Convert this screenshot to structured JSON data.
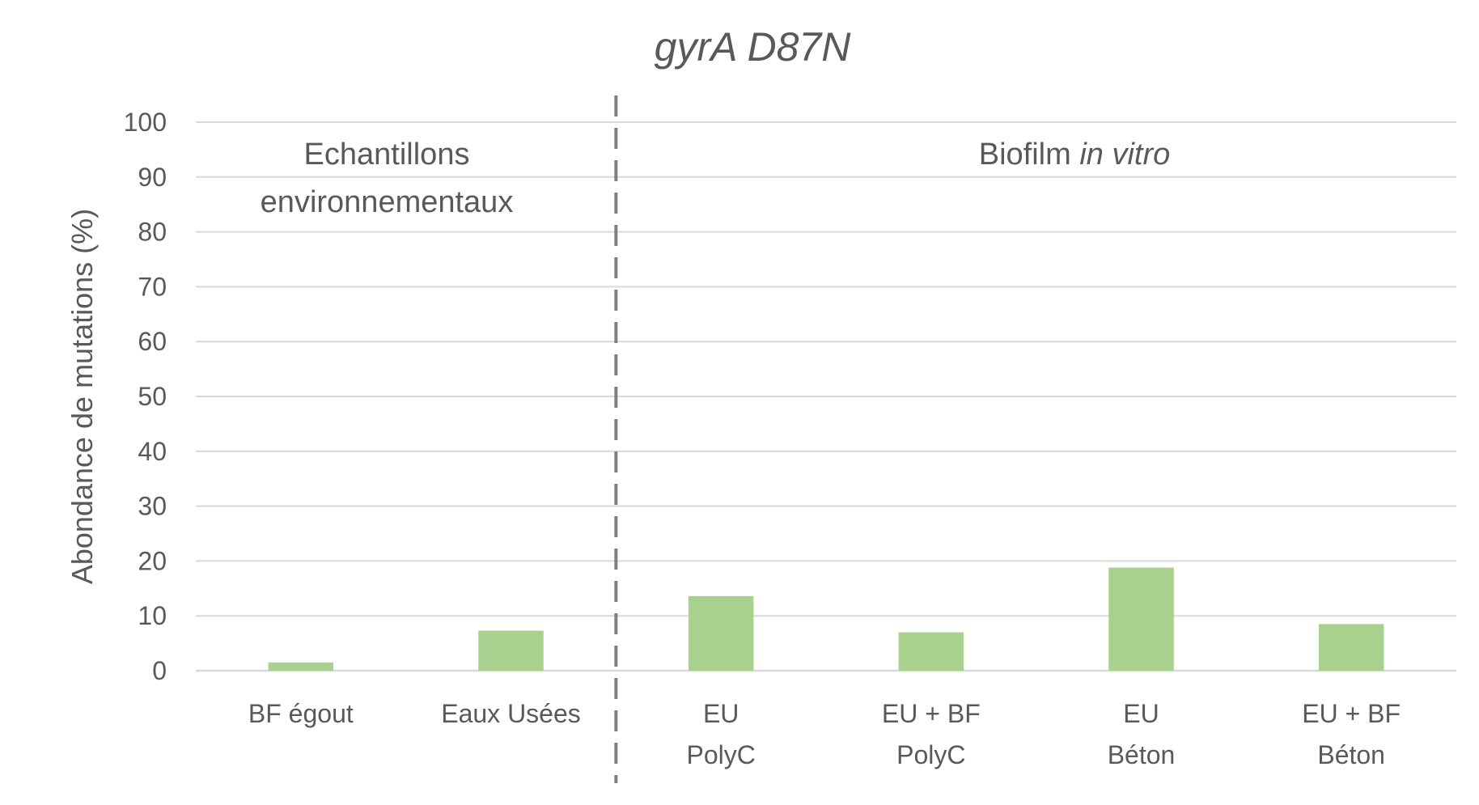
{
  "chart_data": {
    "type": "bar",
    "title": "gyrA D87N",
    "ylabel": "Abondance de mutations (%)",
    "xlabel": "",
    "ylim": [
      0,
      100
    ],
    "yticks": [
      0,
      10,
      20,
      30,
      40,
      50,
      60,
      70,
      80,
      90,
      100
    ],
    "grid": true,
    "categories": [
      [
        "BF égout"
      ],
      [
        "Eaux Usées"
      ],
      [
        "EU",
        "PolyC"
      ],
      [
        "EU + BF",
        "PolyC"
      ],
      [
        "EU",
        "Béton"
      ],
      [
        "EU + BF",
        "Béton"
      ]
    ],
    "values": [
      1.5,
      7.3,
      13.6,
      7.0,
      18.8,
      8.5
    ],
    "bar_color": "#a9d18e",
    "sections": [
      {
        "lines": [
          [
            "Echantillons"
          ],
          [
            "environnementaux"
          ]
        ],
        "categories": [
          0,
          1
        ]
      },
      {
        "lines": [
          [
            "Biofilm ",
            "in vitro"
          ]
        ],
        "italic_parts": [
          [
            1
          ]
        ],
        "categories": [
          2,
          3,
          4,
          5
        ]
      }
    ],
    "divider_after_category": 1
  }
}
